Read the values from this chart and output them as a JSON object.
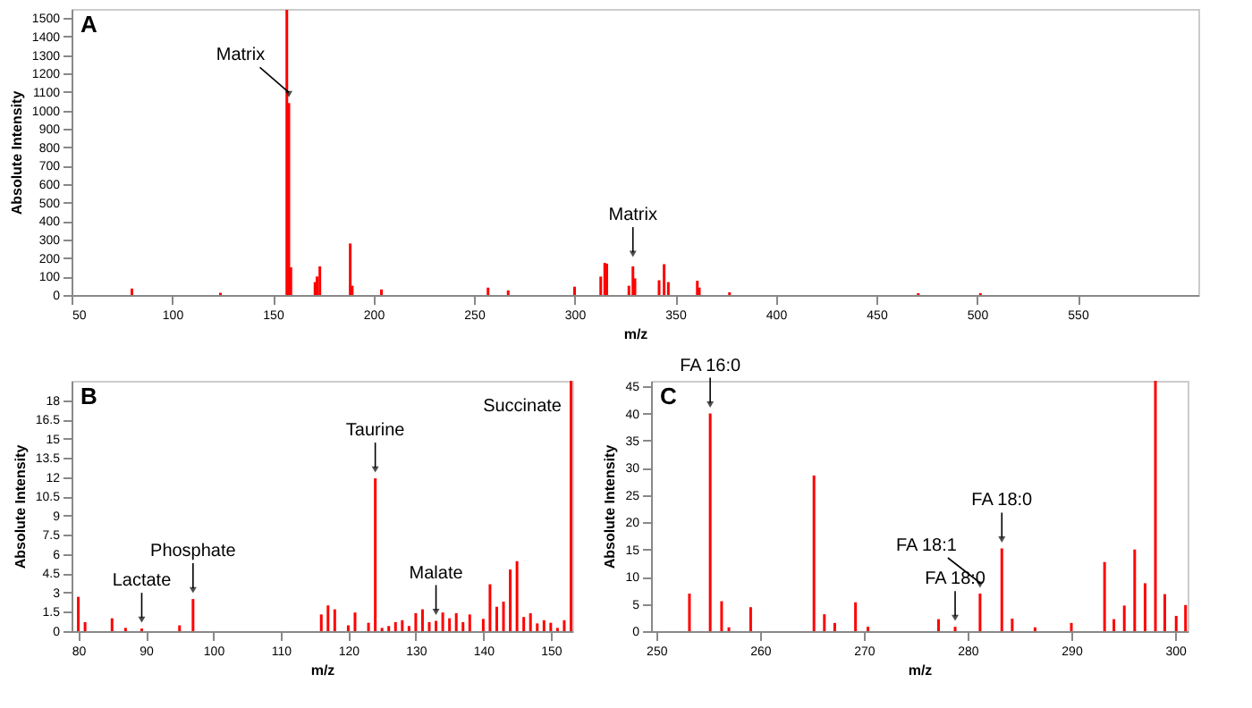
{
  "chart_data": [
    {
      "type": "bar",
      "title": "A",
      "xlabel": "m/z",
      "ylabel": "Absolute Intensity",
      "xlim": [
        50,
        610
      ],
      "ylim": [
        0,
        1550
      ],
      "xticks": [
        50,
        100,
        150,
        200,
        250,
        300,
        350,
        400,
        450,
        500,
        550
      ],
      "yticks": [
        0,
        100,
        200,
        300,
        400,
        500,
        600,
        700,
        800,
        900,
        1000,
        1100,
        1200,
        1300,
        1400,
        1500
      ],
      "grid": false,
      "series": [
        {
          "color": "#ff0000",
          "x": [
            80,
            124,
            157,
            158,
            159,
            171,
            172,
            173.4,
            188.5,
            189.5,
            204,
            257,
            267,
            300,
            313,
            315,
            316,
            327,
            329,
            330,
            342,
            344.5,
            346.6,
            361,
            362,
            377,
            470.8,
            501.7
          ],
          "values": [
            35,
            12,
            1545,
            1040,
            150,
            70,
            100,
            155,
            279,
            50,
            30,
            40,
            25,
            45,
            100,
            174,
            170,
            50,
            155,
            90,
            80,
            167,
            70,
            77,
            40,
            15,
            10,
            10
          ]
        }
      ],
      "annotations": [
        {
          "text": "Matrix",
          "x": 158,
          "y": 1040
        },
        {
          "text": "Matrix",
          "x": 329,
          "y": 174
        }
      ]
    },
    {
      "type": "bar",
      "title": "B",
      "xlabel": "m/z",
      "ylabel": "Absolute Intensity",
      "xlim": [
        79,
        153.2
      ],
      "ylim": [
        0,
        19.5
      ],
      "xticks": [
        80,
        90,
        100,
        110,
        120,
        130,
        140,
        150
      ],
      "yticks": [
        0,
        1.5,
        3,
        4.5,
        6,
        7.5,
        9,
        10.5,
        12,
        13.5,
        15,
        16.5,
        18
      ],
      "grid": false,
      "series": [
        {
          "color": "#ff0000",
          "x": [
            80,
            81,
            85,
            87,
            89.4,
            95,
            97,
            116,
            117,
            118,
            120,
            121,
            123,
            124,
            125,
            126,
            127,
            128,
            129,
            130,
            131,
            132,
            133,
            134,
            135,
            136,
            137,
            138,
            140,
            141,
            142,
            143,
            144,
            145,
            146,
            147,
            148,
            149,
            150,
            151,
            152,
            153
          ],
          "values": [
            2.67,
            0.7,
            1.0,
            0.25,
            0.2,
            0.45,
            2.5,
            1.3,
            2.0,
            1.7,
            0.45,
            1.45,
            0.65,
            11.9,
            0.25,
            0.4,
            0.7,
            0.85,
            0.4,
            1.4,
            1.7,
            0.7,
            0.8,
            1.45,
            1.0,
            1.4,
            0.7,
            1.3,
            0.95,
            3.65,
            1.9,
            2.3,
            4.8,
            5.45,
            1.1,
            1.4,
            0.6,
            0.85,
            0.65,
            0.25,
            0.85,
            19.5
          ]
        }
      ],
      "annotations": [
        {
          "text": "Lactate",
          "x": 89.4,
          "y": 0.2
        },
        {
          "text": "Phosphate",
          "x": 97,
          "y": 2.5
        },
        {
          "text": "Taurine",
          "x": 124,
          "y": 11.9
        },
        {
          "text": "Malate",
          "x": 133,
          "y": 0.8
        },
        "Succinate"
      ]
    },
    {
      "type": "bar",
      "title": "C",
      "xlabel": "m/z",
      "ylabel": "Absolute Intensity",
      "xlim": [
        249.5,
        301.2
      ],
      "ylim": [
        0,
        46
      ],
      "xticks": [
        250,
        260,
        270,
        280,
        290,
        300
      ],
      "yticks": [
        0,
        5,
        10,
        15,
        20,
        25,
        30,
        35,
        40,
        45
      ],
      "grid": false,
      "series": [
        {
          "color": "#ff0000",
          "x": [
            253.2,
            255.2,
            256.3,
            257,
            259.1,
            265.2,
            266.2,
            267.2,
            269.2,
            270.4,
            277.2,
            278.8,
            281.2,
            283.3,
            284.3,
            286.5,
            290,
            293.2,
            294.1,
            295.1,
            296.1,
            297.1,
            298.1,
            299,
            300.1,
            301
          ],
          "values": [
            6.9,
            40,
            5.5,
            0.7,
            4.4,
            28.6,
            3.1,
            1.5,
            5.3,
            0.8,
            2.2,
            0.8,
            6.9,
            15.2,
            2.3,
            0.7,
            1.5,
            12.7,
            2.2,
            4.7,
            15,
            8.8,
            46,
            6.8,
            2.8,
            4.8
          ]
        }
      ],
      "annotations": [
        {
          "text": "FA 16:0",
          "x": 255.2,
          "y": 40
        },
        {
          "text": "FA 18:0",
          "x": 278.8,
          "y": 0.8
        },
        {
          "text": "FA 18:1",
          "x": 281.2,
          "y": 6.9
        },
        {
          "text": "FA 18:0",
          "x": 283.3,
          "y": 15.2
        }
      ]
    }
  ]
}
